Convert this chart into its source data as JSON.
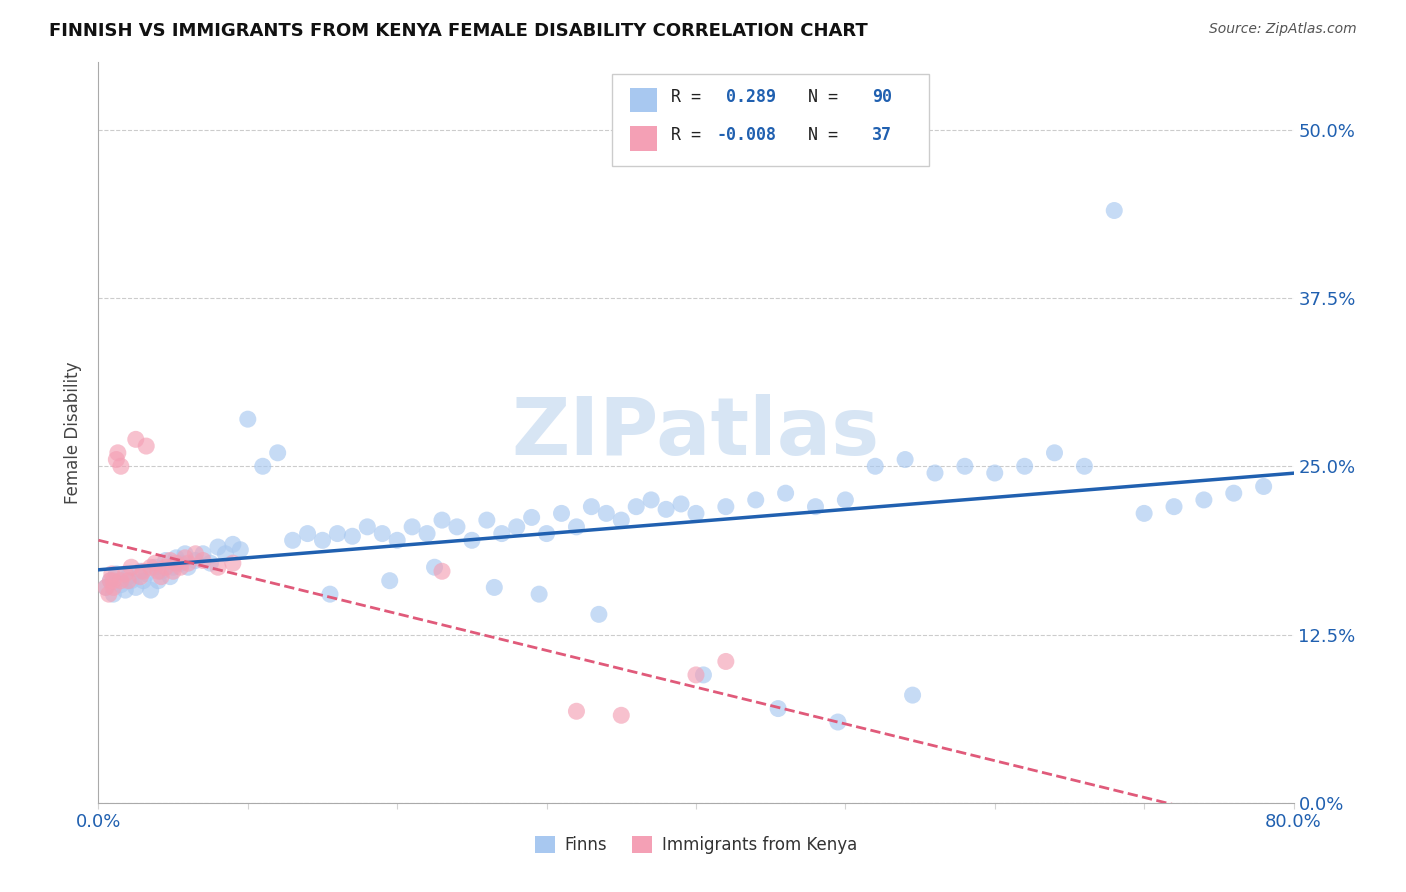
{
  "title": "FINNISH VS IMMIGRANTS FROM KENYA FEMALE DISABILITY CORRELATION CHART",
  "source": "Source: ZipAtlas.com",
  "ylabel": "Female Disability",
  "watermark": "ZIPatlas",
  "legend_finn": "Finns",
  "legend_kenya": "Immigrants from Kenya",
  "r_finn": 0.289,
  "n_finn": 90,
  "r_kenya": -0.008,
  "n_kenya": 37,
  "xlim": [
    0.0,
    0.8
  ],
  "ylim": [
    0.0,
    0.55
  ],
  "yticks": [
    0.0,
    0.125,
    0.25,
    0.375,
    0.5
  ],
  "ytick_labels": [
    "0.0%",
    "12.5%",
    "25.0%",
    "37.5%",
    "50.0%"
  ],
  "color_finn": "#A8C8F0",
  "color_kenya": "#F4A0B5",
  "line_color_finn": "#2060B0",
  "line_color_kenya": "#E05A7A",
  "axis_color": "#2060B0",
  "finns_x": [
    0.005,
    0.008,
    0.01,
    0.012,
    0.015,
    0.018,
    0.02,
    0.022,
    0.025,
    0.028,
    0.03,
    0.032,
    0.035,
    0.038,
    0.04,
    0.042,
    0.045,
    0.048,
    0.05,
    0.052,
    0.055,
    0.058,
    0.06,
    0.065,
    0.07,
    0.075,
    0.08,
    0.085,
    0.09,
    0.095,
    0.1,
    0.11,
    0.12,
    0.13,
    0.14,
    0.15,
    0.16,
    0.17,
    0.18,
    0.19,
    0.2,
    0.21,
    0.22,
    0.23,
    0.24,
    0.25,
    0.26,
    0.27,
    0.28,
    0.29,
    0.3,
    0.31,
    0.32,
    0.33,
    0.34,
    0.35,
    0.36,
    0.37,
    0.38,
    0.39,
    0.4,
    0.42,
    0.44,
    0.46,
    0.48,
    0.5,
    0.52,
    0.54,
    0.56,
    0.58,
    0.6,
    0.62,
    0.64,
    0.66,
    0.68,
    0.7,
    0.72,
    0.74,
    0.76,
    0.78,
    0.155,
    0.195,
    0.225,
    0.265,
    0.295,
    0.335,
    0.405,
    0.455,
    0.495,
    0.545
  ],
  "finns_y": [
    0.16,
    0.165,
    0.155,
    0.17,
    0.162,
    0.158,
    0.168,
    0.165,
    0.16,
    0.172,
    0.165,
    0.17,
    0.158,
    0.175,
    0.165,
    0.172,
    0.18,
    0.168,
    0.175,
    0.182,
    0.178,
    0.185,
    0.175,
    0.18,
    0.185,
    0.178,
    0.19,
    0.185,
    0.192,
    0.188,
    0.285,
    0.25,
    0.26,
    0.195,
    0.2,
    0.195,
    0.2,
    0.198,
    0.205,
    0.2,
    0.195,
    0.205,
    0.2,
    0.21,
    0.205,
    0.195,
    0.21,
    0.2,
    0.205,
    0.212,
    0.2,
    0.215,
    0.205,
    0.22,
    0.215,
    0.21,
    0.22,
    0.225,
    0.218,
    0.222,
    0.215,
    0.22,
    0.225,
    0.23,
    0.22,
    0.225,
    0.25,
    0.255,
    0.245,
    0.25,
    0.245,
    0.25,
    0.26,
    0.25,
    0.44,
    0.215,
    0.22,
    0.225,
    0.23,
    0.235,
    0.155,
    0.165,
    0.175,
    0.16,
    0.155,
    0.14,
    0.095,
    0.07,
    0.06,
    0.08
  ],
  "kenya_x": [
    0.005,
    0.007,
    0.008,
    0.009,
    0.01,
    0.01,
    0.012,
    0.013,
    0.015,
    0.015,
    0.018,
    0.02,
    0.022,
    0.025,
    0.028,
    0.03,
    0.032,
    0.035,
    0.038,
    0.04,
    0.042,
    0.045,
    0.048,
    0.05,
    0.052,
    0.055,
    0.058,
    0.06,
    0.065,
    0.07,
    0.23,
    0.32,
    0.4,
    0.42,
    0.35,
    0.08,
    0.09
  ],
  "kenya_y": [
    0.16,
    0.155,
    0.165,
    0.17,
    0.16,
    0.165,
    0.255,
    0.26,
    0.165,
    0.25,
    0.17,
    0.165,
    0.175,
    0.27,
    0.168,
    0.172,
    0.265,
    0.175,
    0.178,
    0.172,
    0.168,
    0.175,
    0.18,
    0.172,
    0.178,
    0.175,
    0.182,
    0.178,
    0.185,
    0.18,
    0.172,
    0.068,
    0.095,
    0.105,
    0.065,
    0.175,
    0.178
  ]
}
